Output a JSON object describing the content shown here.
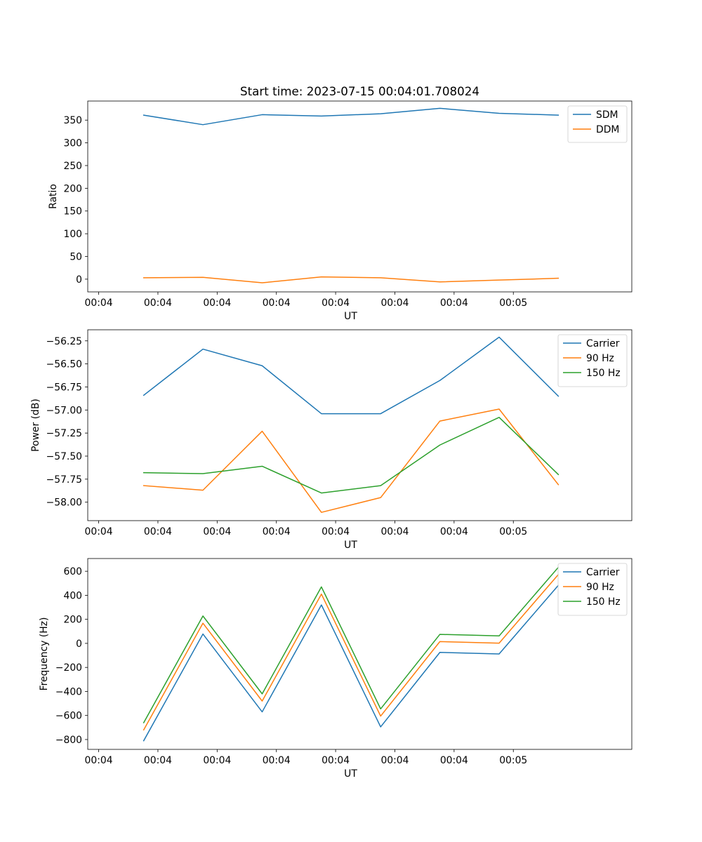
{
  "figure_title": "Start time: 2023-07-15 00:04:01.708024",
  "colors": {
    "c0": "#1f77b4",
    "c1": "#ff7f0e",
    "c2": "#2ca02c"
  },
  "chart_data": [
    {
      "type": "line",
      "title": "Start time: 2023-07-15 00:04:01.708024",
      "xlabel": "UT",
      "ylabel": "Ratio",
      "x_tick_labels": [
        "00:04",
        "00:04",
        "00:04",
        "00:04",
        "00:04",
        "00:04",
        "00:04",
        "00:05"
      ],
      "xlim": [
        -0.1845,
        9.0
      ],
      "ylim": [
        -28,
        392
      ],
      "y_ticks": [
        0,
        50,
        100,
        150,
        200,
        250,
        300,
        350
      ],
      "y_tick_labels": [
        "0",
        "50",
        "100",
        "150",
        "200",
        "250",
        "300",
        "350"
      ],
      "x": [
        0.76,
        1.76,
        2.76,
        3.76,
        4.76,
        5.76,
        6.76,
        7.76
      ],
      "series": [
        {
          "name": "SDM",
          "color": "#1f77b4",
          "values": [
            361,
            340,
            362,
            359,
            364,
            376,
            365,
            361
          ]
        },
        {
          "name": "DDM",
          "color": "#ff7f0e",
          "values": [
            3,
            4,
            -8,
            5,
            3,
            -6,
            -2,
            2
          ]
        }
      ],
      "legend_position": "upper right"
    },
    {
      "type": "line",
      "title": "",
      "xlabel": "UT",
      "ylabel": "Power (dB)",
      "x_tick_labels": [
        "00:04",
        "00:04",
        "00:04",
        "00:04",
        "00:04",
        "00:04",
        "00:04",
        "00:05"
      ],
      "xlim": [
        -0.1845,
        9.0
      ],
      "ylim": [
        -58.2,
        -56.13
      ],
      "y_ticks": [
        -58.0,
        -57.75,
        -57.5,
        -57.25,
        -57.0,
        -56.75,
        -56.5,
        -56.25
      ],
      "y_tick_labels": [
        "−58.00",
        "−57.75",
        "−57.50",
        "−57.25",
        "−57.00",
        "−56.75",
        "−56.50",
        "−56.25"
      ],
      "x": [
        0.76,
        1.76,
        2.76,
        3.76,
        4.76,
        5.76,
        6.76,
        7.76
      ],
      "series": [
        {
          "name": "Carrier",
          "color": "#1f77b4",
          "values": [
            -56.84,
            -56.34,
            -56.52,
            -57.04,
            -57.04,
            -56.68,
            -56.21,
            -56.85
          ]
        },
        {
          "name": "90 Hz",
          "color": "#ff7f0e",
          "values": [
            -57.82,
            -57.87,
            -57.23,
            -58.11,
            -57.95,
            -57.12,
            -56.99,
            -57.81
          ]
        },
        {
          "name": "150 Hz",
          "color": "#2ca02c",
          "values": [
            -57.68,
            -57.69,
            -57.61,
            -57.9,
            -57.82,
            -57.38,
            -57.08,
            -57.7
          ]
        }
      ],
      "legend_position": "upper right"
    },
    {
      "type": "line",
      "title": "",
      "xlabel": "UT",
      "ylabel": "Frequency (Hz)",
      "x_tick_labels": [
        "00:04",
        "00:04",
        "00:04",
        "00:04",
        "00:04",
        "00:04",
        "00:04",
        "00:05"
      ],
      "xlim": [
        -0.1845,
        9.0
      ],
      "ylim": [
        -882,
        706
      ],
      "y_ticks": [
        -800,
        -600,
        -400,
        -200,
        0,
        200,
        400,
        600
      ],
      "y_tick_labels": [
        "−800",
        "−600",
        "−400",
        "−200",
        "0",
        "200",
        "400",
        "600"
      ],
      "x": [
        0.76,
        1.76,
        2.76,
        3.76,
        4.76,
        5.76,
        6.76,
        7.76
      ],
      "series": [
        {
          "name": "Carrier",
          "color": "#1f77b4",
          "values": [
            -810,
            78,
            -570,
            320,
            -695,
            -75,
            -88,
            483
          ]
        },
        {
          "name": "90 Hz",
          "color": "#ff7f0e",
          "values": [
            -720,
            168,
            -480,
            410,
            -605,
            15,
            2,
            573
          ]
        },
        {
          "name": "150 Hz",
          "color": "#2ca02c",
          "values": [
            -660,
            228,
            -420,
            470,
            -545,
            75,
            62,
            633
          ]
        }
      ],
      "legend_position": "upper right"
    }
  ]
}
